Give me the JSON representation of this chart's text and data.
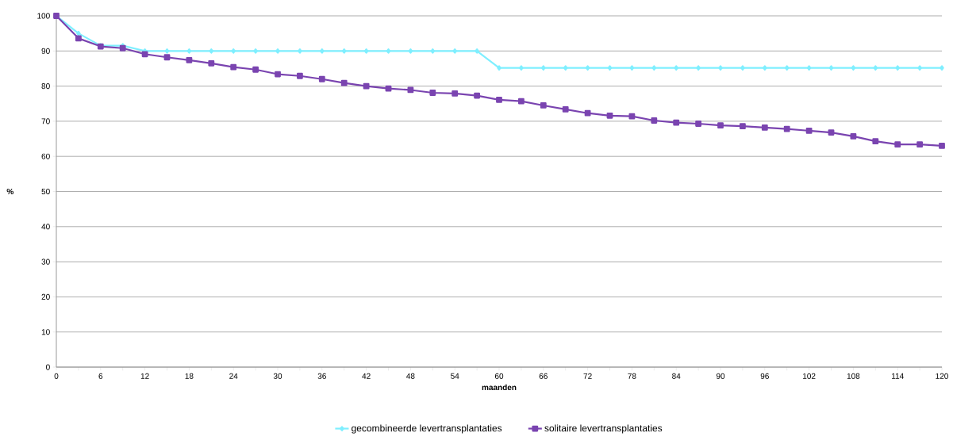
{
  "chart_data": {
    "type": "line",
    "xlabel": "**maanden**",
    "ylabel": "**%**",
    "x": [
      0,
      3,
      6,
      9,
      12,
      15,
      18,
      21,
      24,
      27,
      30,
      33,
      36,
      39,
      42,
      45,
      48,
      51,
      54,
      57,
      60,
      63,
      66,
      69,
      72,
      75,
      78,
      81,
      84,
      87,
      90,
      93,
      96,
      99,
      102,
      105,
      108,
      111,
      114,
      117,
      120
    ],
    "series": [
      {
        "name": "gecombineerde levertransplantaties",
        "color": "#7fefff",
        "marker": "diamond",
        "values": [
          100,
          95,
          91.5,
          91.5,
          90,
          90,
          90,
          90,
          90,
          90,
          90,
          90,
          90,
          90,
          90,
          90,
          90,
          90,
          90,
          90,
          85.2,
          85.2,
          85.2,
          85.2,
          85.2,
          85.2,
          85.2,
          85.2,
          85.2,
          85.2,
          85.2,
          85.2,
          85.2,
          85.2,
          85.2,
          85.2,
          85.2,
          85.2,
          85.2,
          85.2,
          85.2
        ]
      },
      {
        "name": "solitaire levertransplantaties",
        "color": "#7a44b0",
        "marker": "square",
        "values": [
          100,
          93.6,
          91.3,
          90.8,
          89.1,
          88.2,
          87.4,
          86.5,
          85.4,
          84.7,
          83.4,
          82.9,
          82.0,
          80.9,
          80.0,
          79.3,
          78.9,
          78.1,
          77.9,
          77.3,
          76.1,
          75.7,
          74.5,
          73.4,
          72.3,
          71.6,
          71.4,
          70.2,
          69.6,
          69.3,
          68.8,
          68.6,
          68.2,
          67.8,
          67.3,
          66.8,
          65.7,
          64.3,
          63.4,
          63.4,
          63.0
        ]
      }
    ],
    "xlim": [
      0,
      120
    ],
    "ylim": [
      0,
      100
    ],
    "xticks": [
      0,
      {
        "value": 3,
        "label": null
      },
      6,
      {
        "value": 9,
        "label": null
      },
      12,
      {
        "value": 15,
        "label": null
      },
      18,
      {
        "value": 21,
        "label": null
      },
      24,
      {
        "value": 27,
        "label": null
      },
      30,
      {
        "value": 33,
        "label": null
      },
      36,
      {
        "value": 39,
        "label": null
      },
      42,
      {
        "value": 45,
        "label": null
      },
      48,
      {
        "value": 51,
        "label": null
      },
      54,
      {
        "value": 57,
        "label": null
      },
      60,
      {
        "value": 63,
        "label": null
      },
      66,
      {
        "value": 69,
        "label": null
      },
      72,
      {
        "value": 75,
        "label": null
      },
      78,
      {
        "value": 81,
        "label": null
      },
      84,
      {
        "value": 87,
        "label": null
      },
      90,
      {
        "value": 93,
        "label": null
      },
      96,
      {
        "value": 99,
        "label": null
      },
      102,
      {
        "value": 105,
        "label": null
      },
      108,
      {
        "value": 111,
        "label": null
      },
      114,
      {
        "value": 117,
        "label": null
      },
      120
    ],
    "yticks": [
      0,
      10,
      20,
      30,
      40,
      50,
      60,
      70,
      80,
      90,
      100
    ],
    "grid": "y",
    "legend": "bottom"
  }
}
